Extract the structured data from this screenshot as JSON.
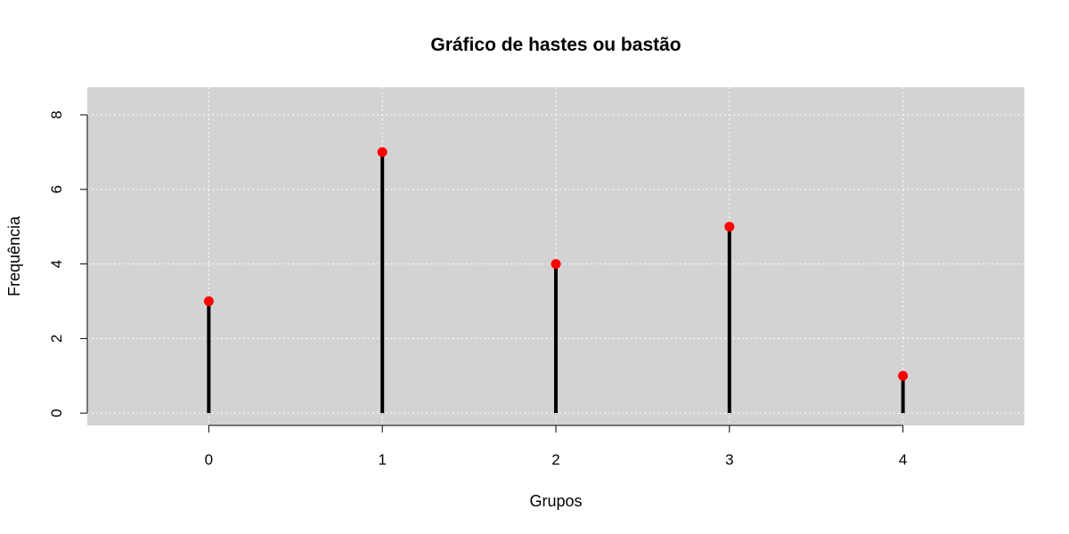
{
  "chart_data": {
    "type": "stem",
    "title": "Gráfico de hastes ou bastão",
    "xlabel": "Grupos",
    "ylabel": "Frequência",
    "categories": [
      "0",
      "1",
      "2",
      "3",
      "4"
    ],
    "x": [
      0,
      1,
      2,
      3,
      4
    ],
    "values": [
      3,
      7,
      4,
      5,
      1
    ],
    "xlim": [
      -0.7,
      4.7
    ],
    "ylim": [
      -0.33,
      8.74
    ],
    "xticks": [
      0,
      1,
      2,
      3,
      4
    ],
    "yticks": [
      0,
      2,
      4,
      6,
      8
    ],
    "grid": true,
    "legend": "none",
    "colors": {
      "panel_background": "#d3d3d3",
      "grid": "#ffffff",
      "stem": "#000000",
      "point": "#ff0000",
      "axis": "#000000"
    }
  }
}
